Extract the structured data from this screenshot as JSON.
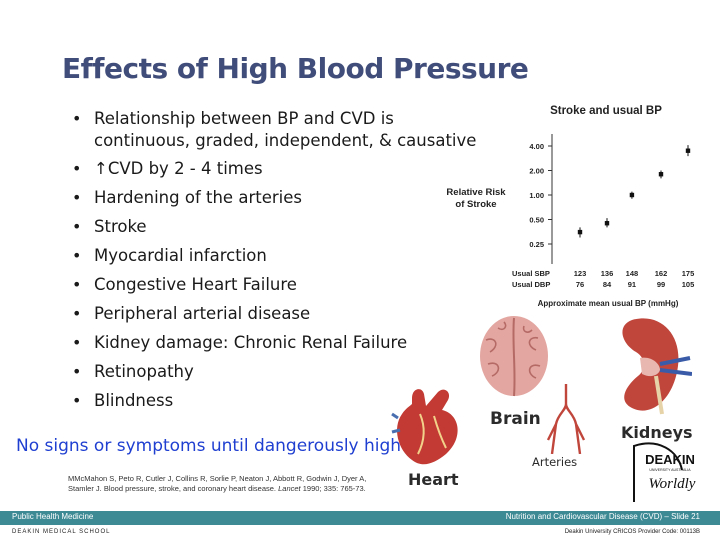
{
  "slide": {
    "title": "Effects of High Blood Pressure",
    "bullets": [
      "Relationship between BP and CVD is continuous, graded, independent, & causative",
      "↑CVD by 2 - 4 times",
      "Hardening of the arteries",
      "Stroke",
      "Myocardial infarction",
      "Congestive Heart Failure",
      "Peripheral arterial disease",
      "Kidney damage: Chronic Renal Failure",
      "Retinopathy",
      "Blindness"
    ],
    "warning": "No signs or symptoms until dangerously high",
    "reference_text": "MMcMahon S, Peto R, Cutler J, Collins R, Sorlie P, Neaton J, Abbott R, Godwin J, Dyer A, Stamler J. Blood pressure, stroke, and coronary heart disease.",
    "reference_journal": "Lancet",
    "reference_tail": "1990; 335: 765-73.",
    "organ_labels": {
      "brain": "Brain",
      "kidneys": "Kidneys",
      "heart": "Heart",
      "arteries": "Arteries"
    },
    "logo": {
      "name": "DEAKIN",
      "sub1": "UNIVERSITY AUSTRALIA",
      "sub2": "Worldly"
    },
    "footer": {
      "left": "Public Health Medicine",
      "right": "Nutrition and Cardiovascular Disease (CVD) – Slide 21",
      "bottom_left": "DEAKIN MEDICAL SCHOOL",
      "bottom_right": "Deakin University CRICOS Provider Code: 00113B"
    },
    "colors": {
      "title": "#404d7a",
      "warning": "#1f3fd1",
      "footer_bar": "#3d8a95"
    }
  },
  "chart_data": {
    "type": "scatter",
    "title": "Stroke and usual BP",
    "ylabel": "Relative Risk of Stroke",
    "xlabel": "Approximate mean usual BP (mmHg)",
    "y_scale": "log",
    "y_ticks": [
      "4.00",
      "2.00",
      "1.00",
      "0.50",
      "0.25"
    ],
    "y_tick_values": [
      4.0,
      2.0,
      1.0,
      0.5,
      0.25
    ],
    "x_rows": [
      {
        "label": "Usual SBP",
        "values": [
          "123",
          "136",
          "148",
          "162",
          "175"
        ]
      },
      {
        "label": "Usual DBP",
        "values": [
          "76",
          "84",
          "91",
          "99",
          "105"
        ]
      }
    ],
    "points": [
      {
        "x": 123,
        "y": 0.35,
        "err": [
          0.3,
          0.4
        ]
      },
      {
        "x": 136,
        "y": 0.45,
        "err": [
          0.4,
          0.52
        ]
      },
      {
        "x": 148,
        "y": 1.0,
        "err": [
          0.9,
          1.1
        ]
      },
      {
        "x": 162,
        "y": 1.8,
        "err": [
          1.6,
          2.0
        ]
      },
      {
        "x": 175,
        "y": 3.5,
        "err": [
          3.0,
          4.1
        ]
      }
    ]
  }
}
